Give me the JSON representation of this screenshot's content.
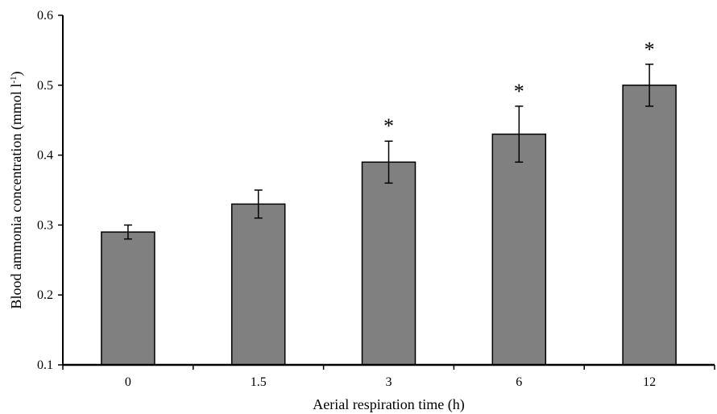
{
  "chart_data": {
    "type": "bar",
    "title": "",
    "xlabel": "Aerial respiration time (h)",
    "ylabel_main": "Blood ammonia concentration (mmol l",
    "ylabel_sup": "-1",
    "ylabel_end": ")",
    "categories": [
      "0",
      "1.5",
      "3",
      "6",
      "12"
    ],
    "values": [
      0.29,
      0.33,
      0.39,
      0.43,
      0.5
    ],
    "errors": [
      0.01,
      0.02,
      0.03,
      0.04,
      0.03
    ],
    "significance": [
      "",
      "",
      "*",
      "*",
      "*"
    ],
    "ylim": [
      0.1,
      0.6
    ],
    "yticks": [
      "0.1",
      "0.2",
      "0.3",
      "0.4",
      "0.5",
      "0.6"
    ],
    "grid": false,
    "legend": "none",
    "bar_color": "#808080",
    "bar_edge_color": "#000000"
  }
}
